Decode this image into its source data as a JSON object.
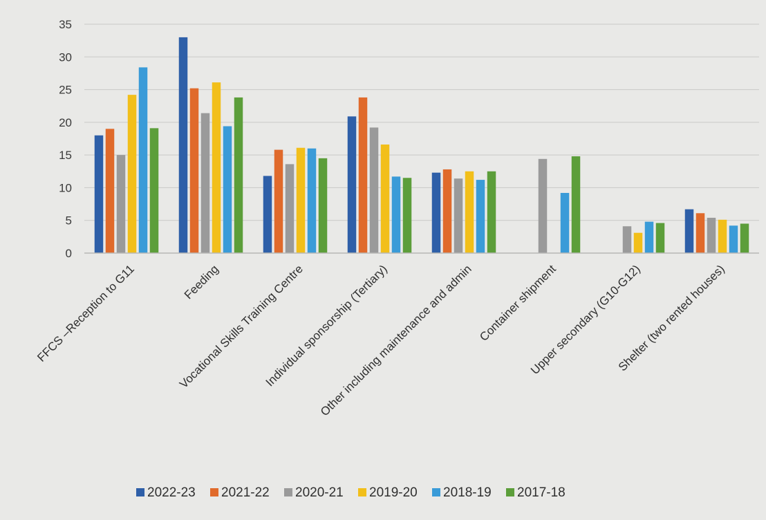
{
  "chart_data": {
    "type": "bar",
    "title": "",
    "xlabel": "",
    "ylabel": "",
    "ylim": [
      0,
      35
    ],
    "yticks": [
      0,
      5,
      10,
      15,
      20,
      25,
      30,
      35
    ],
    "grid": true,
    "legend_position": "bottom",
    "categories": [
      "FFCS –Reception to G11",
      "Feeding",
      "Vocational Skills Training Centre",
      "Individual sponsorship (Tertiary)",
      "Other including maintenance and admin",
      "Container shipment",
      "Upper secondary (G10-G12)",
      "Shelter (two rented houses)"
    ],
    "series": [
      {
        "name": "2022-23",
        "color": "#2e5fa8",
        "values": [
          18,
          33,
          11.8,
          20.9,
          12.3,
          null,
          null,
          6.7
        ]
      },
      {
        "name": "2021-22",
        "color": "#e06a2b",
        "values": [
          19,
          25.2,
          15.8,
          23.8,
          12.8,
          null,
          null,
          6.1
        ]
      },
      {
        "name": "2020-21",
        "color": "#9a9a9a",
        "values": [
          15,
          21.4,
          13.6,
          19.2,
          11.4,
          14.4,
          4.1,
          5.4
        ]
      },
      {
        "name": "2019-20",
        "color": "#f2bf1a",
        "values": [
          24.2,
          26.1,
          16.1,
          16.6,
          12.5,
          null,
          3.1,
          5.1
        ]
      },
      {
        "name": "2018-19",
        "color": "#3a9bd8",
        "values": [
          28.4,
          19.4,
          16,
          11.7,
          11.2,
          9.2,
          4.8,
          4.2
        ]
      },
      {
        "name": "2017-18",
        "color": "#5c9e3a",
        "values": [
          19.1,
          23.8,
          14.5,
          11.5,
          12.5,
          14.8,
          4.6,
          4.5
        ]
      }
    ]
  }
}
